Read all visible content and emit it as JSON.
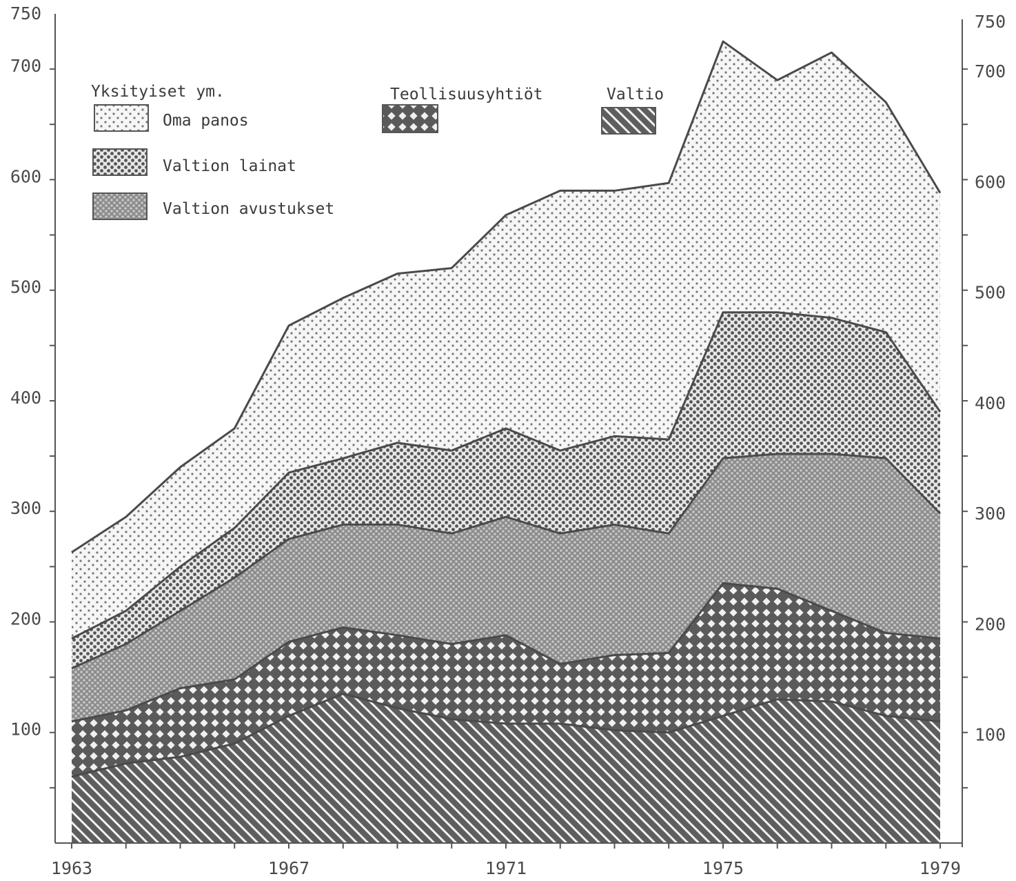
{
  "chart_data": {
    "type": "area",
    "stacked": true,
    "x": [
      1963,
      1964,
      1965,
      1966,
      1967,
      1968,
      1969,
      1970,
      1971,
      1972,
      1973,
      1974,
      1975,
      1976,
      1977,
      1978,
      1979
    ],
    "x_tick_labels": [
      "1963",
      "1967",
      "1971",
      "1975",
      "1979"
    ],
    "ylim": [
      0,
      750
    ],
    "y_tick_labels": [
      "100",
      "200",
      "300",
      "400",
      "500",
      "600",
      "700",
      "750"
    ],
    "y_axis_right": true,
    "grid": false,
    "legend_groups": [
      {
        "title": "Yksityiset ym.",
        "entries": [
          {
            "label": "Oma panos",
            "pattern": "sparse-dots",
            "series": "oma_panos"
          },
          {
            "label": "Valtion lainat",
            "pattern": "medium-dots",
            "series": "valtion_lainat"
          },
          {
            "label": "Valtion avustukset",
            "pattern": "dense-dots",
            "series": "valtion_avustukset"
          }
        ]
      },
      {
        "title": "Teollisuusyhtiöt",
        "entries": [
          {
            "label": "",
            "pattern": "crosshatch",
            "series": "teollisuusyhtiot"
          }
        ]
      },
      {
        "title": "Valtio",
        "entries": [
          {
            "label": "",
            "pattern": "diagonal",
            "series": "valtio"
          }
        ]
      }
    ],
    "cumulative_boundaries": {
      "valtio": [
        60,
        72,
        78,
        90,
        115,
        135,
        122,
        112,
        108,
        108,
        102,
        100,
        115,
        130,
        128,
        115,
        110
      ],
      "teollisuusyhtiot": [
        110,
        120,
        140,
        148,
        182,
        195,
        188,
        180,
        188,
        162,
        170,
        172,
        235,
        230,
        210,
        190,
        185
      ],
      "valtion_avustukset": [
        158,
        180,
        210,
        240,
        275,
        288,
        288,
        280,
        295,
        280,
        288,
        280,
        348,
        352,
        352,
        348,
        298
      ],
      "valtion_lainat": [
        185,
        210,
        250,
        285,
        335,
        348,
        362,
        355,
        375,
        355,
        368,
        365,
        480,
        480,
        475,
        462,
        390
      ],
      "oma_panos": [
        263,
        295,
        340,
        375,
        468,
        493,
        515,
        520,
        568,
        590,
        590,
        597,
        725,
        690,
        715,
        670,
        588
      ]
    },
    "colors": {
      "valtio": "#6e6e6e",
      "teollisuusyhtiot": "#8a8a8a",
      "valtion_avustukset": "#9a9a9a",
      "valtion_lainat": "#b8b8b8",
      "oma_panos": "#dcdcdc",
      "line": "#4a4a4a"
    }
  }
}
